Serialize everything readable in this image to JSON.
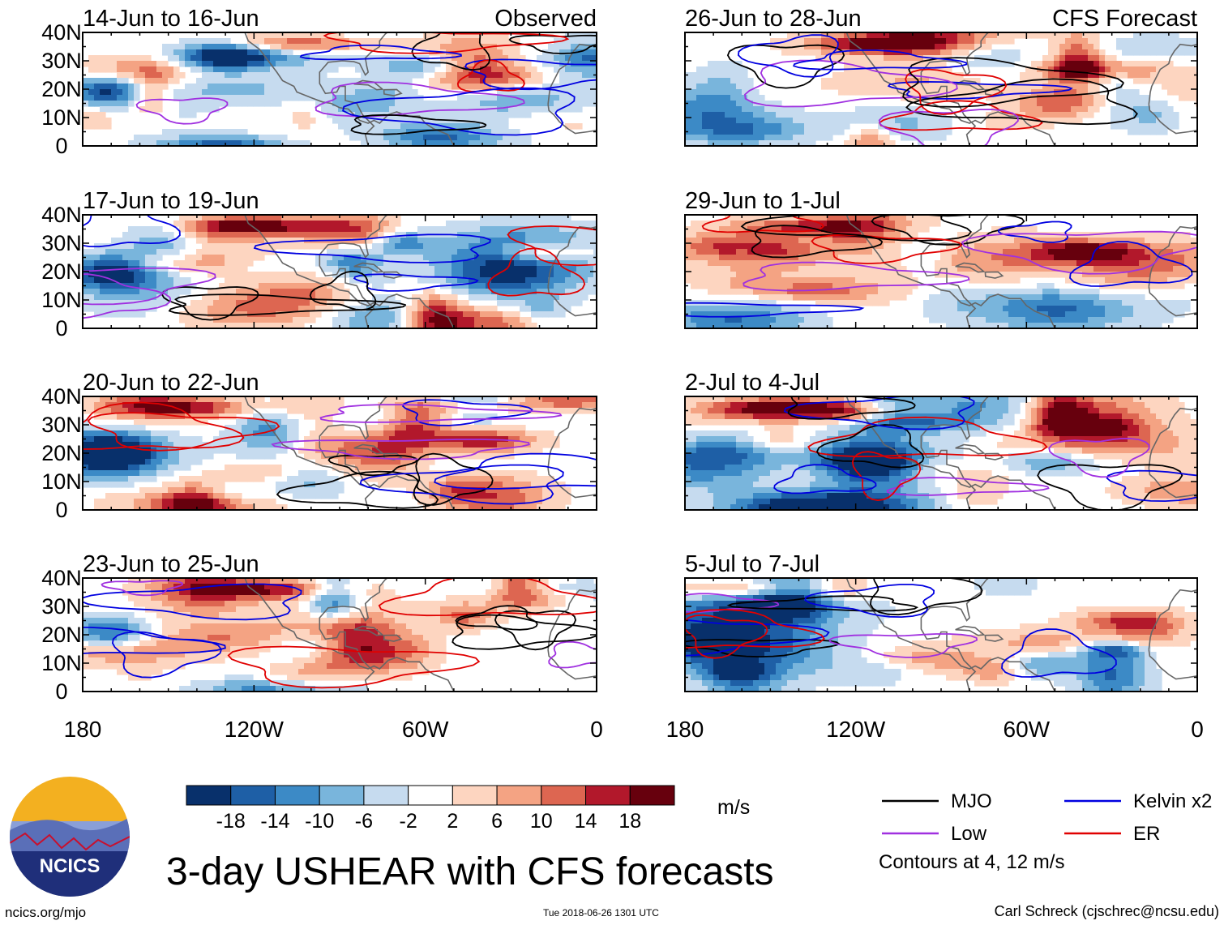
{
  "chart_data": {
    "type": "heatmap",
    "title": "3-day USHEAR with CFS forecasts",
    "variable": "USHEAR",
    "units": "m/s",
    "columns": [
      {
        "label": "Observed",
        "panels": [
          "14-Jun to 16-Jun",
          "17-Jun to 19-Jun",
          "20-Jun to 22-Jun",
          "23-Jun to 25-Jun"
        ]
      },
      {
        "label": "CFS Forecast",
        "panels": [
          "26-Jun to 28-Jun",
          "29-Jun to 1-Jul",
          "2-Jul to 4-Jul",
          "5-Jul to 7-Jul"
        ]
      }
    ],
    "x_axis": {
      "range": [
        -180,
        0
      ],
      "ticks": [
        -180,
        -120,
        -60,
        0
      ],
      "tick_labels": [
        "180",
        "120W",
        "60W",
        "0"
      ]
    },
    "y_axis": {
      "range": [
        0,
        40
      ],
      "ticks": [
        0,
        10,
        20,
        30,
        40
      ],
      "tick_labels": [
        "0",
        "10N",
        "20N",
        "30N",
        "40N"
      ]
    },
    "colorbar": {
      "levels": [
        -18,
        -14,
        -10,
        -6,
        -2,
        2,
        6,
        10,
        14,
        18
      ],
      "tick_labels": [
        "-18",
        "-14",
        "-10",
        "-6",
        "-2",
        "2",
        "6",
        "10",
        "14",
        "18"
      ],
      "colors": [
        "#08306b",
        "#1e5fa6",
        "#3c8ac6",
        "#79b5dc",
        "#c6dbef",
        "#ffffff",
        "#fdd5c0",
        "#f4a383",
        "#dd6651",
        "#b2182b",
        "#67000d"
      ]
    },
    "legend": [
      {
        "label": "MJO",
        "color": "#000000"
      },
      {
        "label": "Kelvin x2",
        "color": "#0000e0"
      },
      {
        "label": "Low",
        "color": "#a030e0"
      },
      {
        "label": "ER",
        "color": "#e00000"
      }
    ],
    "contour_note": "Contours at 4, 12 m/s"
  },
  "logo_text": "NCICS",
  "footer": {
    "left": "ncics.org/mjo",
    "center": "Tue 2018-06-26 1301 UTC",
    "right": "Carl Schreck (cjschrec@ncsu.edu)"
  }
}
